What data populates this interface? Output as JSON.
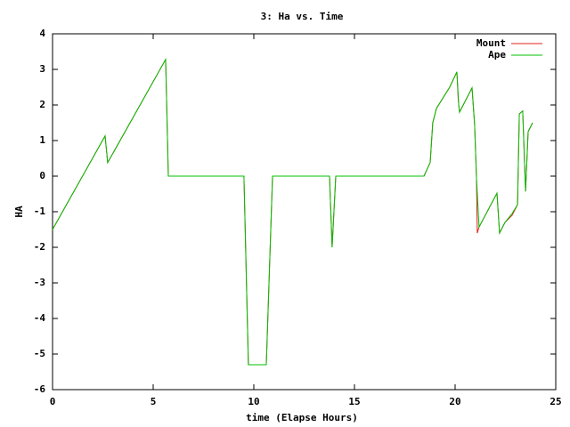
{
  "chart_data": {
    "type": "line",
    "title": "3: Ha vs. Time",
    "x_label": "time (Elapse Hours)",
    "y_label": "HA",
    "xlim": [
      0,
      25
    ],
    "xticks": [
      0,
      5,
      10,
      15,
      20,
      25
    ],
    "ylim": [
      -6,
      4
    ],
    "yticks": [
      -6,
      -5,
      -4,
      -3,
      -2,
      -1,
      0,
      1,
      2,
      3,
      4
    ],
    "legend": "top-right",
    "series": [
      {
        "name": "Mount",
        "color": "#e0201b",
        "x": [
          0,
          2.61,
          2.74,
          5.62,
          5.75,
          9.51,
          9.73,
          10.62,
          10.93,
          13.76,
          13.89,
          14.07,
          18.45,
          18.76,
          18.89,
          19.07,
          19.73,
          20.09,
          20.15,
          20.18,
          20.22,
          20.84,
          20.97,
          21.06,
          21.1,
          21.19,
          22.08,
          22.21,
          22.48,
          22.83,
          23.1,
          23.19,
          23.36,
          23.5,
          23.63,
          23.85
        ],
        "values": [
          -1.5,
          1.13,
          0.38,
          3.28,
          0,
          0,
          -5.3,
          -5.3,
          0,
          0,
          -2,
          0,
          0,
          0.38,
          1.5,
          1.9,
          2.5,
          2.93,
          2.2,
          2,
          1.8,
          2.48,
          1.45,
          -0.05,
          -1.6,
          -1.43,
          -0.48,
          -1.6,
          -1.3,
          -1.1,
          -0.8,
          1.75,
          1.83,
          -0.43,
          1.25,
          1.5
        ]
      },
      {
        "name": "Ape",
        "color": "#00c000",
        "x": [
          0,
          2.61,
          2.74,
          5.62,
          5.75,
          9.51,
          9.73,
          10.62,
          10.93,
          13.76,
          13.89,
          14.07,
          18.45,
          18.76,
          18.89,
          19.07,
          19.73,
          20.09,
          20.18,
          20.22,
          20.84,
          20.97,
          21.06,
          21.19,
          22.08,
          22.21,
          22.48,
          22.83,
          23.1,
          23.19,
          23.36,
          23.5,
          23.63,
          23.85
        ],
        "values": [
          -1.5,
          1.13,
          0.38,
          3.28,
          0,
          0,
          -5.3,
          -5.3,
          0,
          0,
          -2,
          0,
          0,
          0.38,
          1.5,
          1.9,
          2.5,
          2.93,
          2,
          1.8,
          2.48,
          1.45,
          -0.05,
          -1.43,
          -0.48,
          -1.6,
          -1.3,
          -1.05,
          -0.8,
          1.75,
          1.83,
          -0.43,
          1.25,
          1.5
        ]
      }
    ]
  }
}
